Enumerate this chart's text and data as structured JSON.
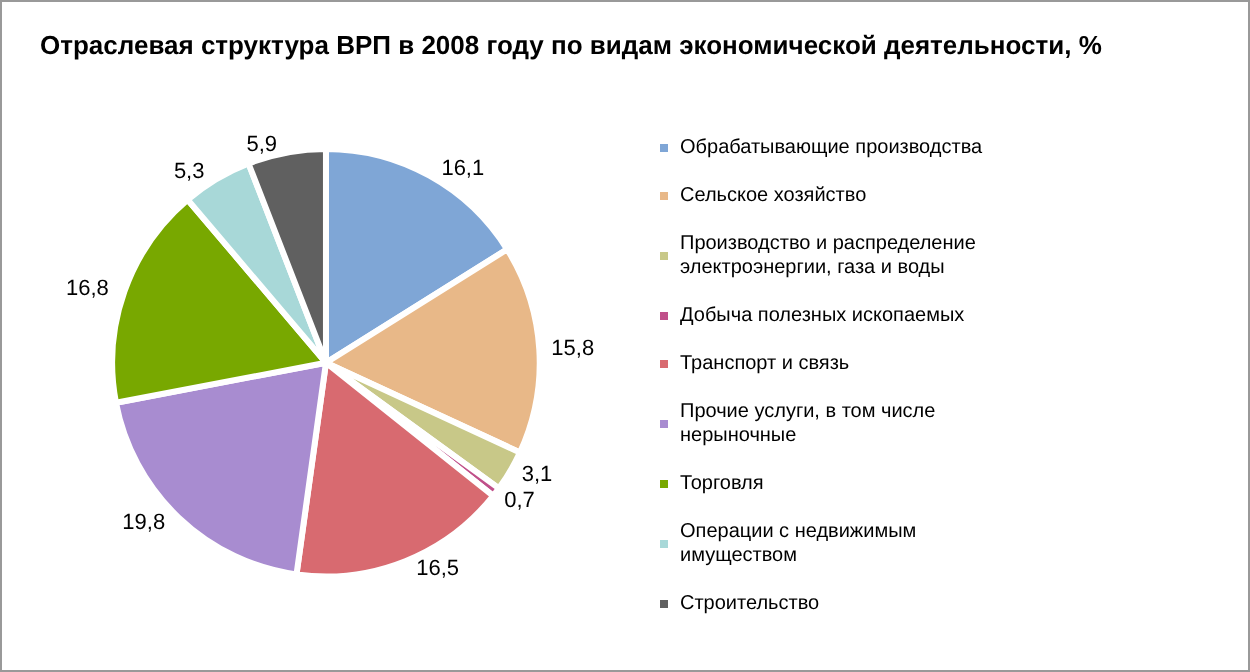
{
  "chart_data": {
    "type": "pie",
    "title": "Отраслевая структура ВРП в 2008 году по видам экономической деятельности, %",
    "categories": [
      "Обрабатывающие производства",
      "Сельское хозяйство",
      "Производство и распределение электроэнергии, газа и воды",
      "Добыча полезных ископаемых",
      "Транспорт и связь",
      "Прочие услуги, в том числе нерыночные",
      "Торговля",
      "Операции с недвижимым имуществом",
      "Строительство"
    ],
    "values": [
      16.1,
      15.8,
      3.1,
      0.7,
      16.5,
      19.8,
      16.8,
      5.3,
      5.9
    ],
    "value_labels": [
      "16,1",
      "15,8",
      "3,1",
      "0,7",
      "16,5",
      "19,8",
      "16,8",
      "5,3",
      "5,9"
    ],
    "colors": [
      "#7fa6d6",
      "#e8b888",
      "#c8c888",
      "#c0508a",
      "#d86a70",
      "#a88cd0",
      "#78a800",
      "#a8d8d8",
      "#606060"
    ],
    "legend": "right"
  }
}
